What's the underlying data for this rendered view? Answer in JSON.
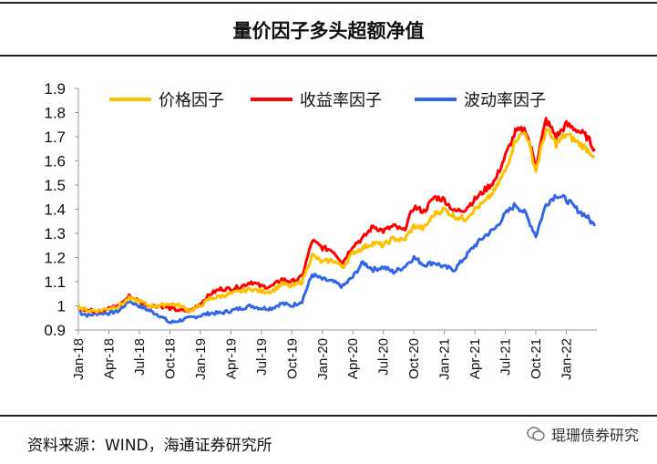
{
  "page": {
    "title": "量价因子多头超额净值",
    "source": "资料来源：WIND，海通证券研究所",
    "watermark": "琨珊债券研究"
  },
  "chart_data": {
    "type": "line",
    "title": "量价因子多头超额净值",
    "xlabel": "",
    "ylabel": "",
    "ylim": [
      0.9,
      1.9
    ],
    "yticks": [
      "0.9",
      "1",
      "1.1",
      "1.2",
      "1.3",
      "1.4",
      "1.5",
      "1.6",
      "1.7",
      "1.8",
      "1.9"
    ],
    "xticks": [
      "Jan-18",
      "Apr-18",
      "Jul-18",
      "Oct-18",
      "Jan-19",
      "Apr-19",
      "Jul-19",
      "Oct-19",
      "Jan-20",
      "Apr-20",
      "Jul-20",
      "Oct-20",
      "Jan-21",
      "Apr-21",
      "Jul-21",
      "Oct-21",
      "Jan-22"
    ],
    "grid": false,
    "legend": "top",
    "series": [
      {
        "name": "价格因子",
        "color": "#FFC000",
        "x": [
          0,
          0.3,
          1,
          2,
          3,
          4,
          5,
          6,
          7,
          8,
          9,
          10,
          11,
          12,
          13,
          14,
          15,
          16,
          17,
          18,
          19,
          20,
          21,
          22,
          23,
          24,
          25,
          26,
          27,
          28,
          29,
          30,
          31,
          32,
          33,
          34,
          35,
          36,
          37,
          38,
          39,
          40,
          41,
          42,
          43,
          44,
          45,
          46,
          47,
          48,
          49,
          50,
          50.8
        ],
        "values": [
          1.0,
          0.99,
          0.98,
          0.98,
          0.99,
          1.0,
          1.03,
          1.02,
          1.0,
          1.0,
          1.01,
          1.0,
          0.98,
          1.0,
          1.03,
          1.04,
          1.05,
          1.06,
          1.07,
          1.06,
          1.06,
          1.09,
          1.08,
          1.1,
          1.21,
          1.18,
          1.19,
          1.16,
          1.22,
          1.24,
          1.26,
          1.25,
          1.28,
          1.27,
          1.33,
          1.32,
          1.38,
          1.4,
          1.37,
          1.36,
          1.4,
          1.43,
          1.48,
          1.56,
          1.69,
          1.72,
          1.56,
          1.73,
          1.67,
          1.71,
          1.68,
          1.65,
          1.62
        ]
      },
      {
        "name": "收益率因子",
        "color": "#FF0000",
        "x": [
          0,
          0.3,
          1,
          2,
          3,
          4,
          5,
          6,
          7,
          8,
          9,
          10,
          11,
          12,
          13,
          14,
          15,
          16,
          17,
          18,
          19,
          20,
          21,
          22,
          23,
          24,
          25,
          26,
          27,
          28,
          29,
          30,
          31,
          32,
          33,
          34,
          35,
          36,
          37,
          38,
          39,
          40,
          41,
          42,
          43,
          44,
          45,
          46,
          47,
          48,
          49,
          50,
          50.8
        ],
        "values": [
          1.0,
          0.99,
          0.98,
          0.98,
          0.99,
          1.0,
          1.04,
          1.02,
          1.0,
          1.0,
          0.99,
          0.98,
          0.98,
          1.01,
          1.05,
          1.07,
          1.07,
          1.08,
          1.1,
          1.08,
          1.08,
          1.11,
          1.1,
          1.12,
          1.27,
          1.24,
          1.23,
          1.18,
          1.25,
          1.28,
          1.33,
          1.31,
          1.33,
          1.31,
          1.41,
          1.39,
          1.45,
          1.44,
          1.39,
          1.4,
          1.44,
          1.48,
          1.52,
          1.62,
          1.72,
          1.73,
          1.58,
          1.77,
          1.7,
          1.75,
          1.73,
          1.7,
          1.65
        ]
      },
      {
        "name": "波动率因子",
        "color": "#3366E6",
        "x": [
          0,
          0.3,
          1,
          2,
          3,
          4,
          5,
          6,
          7,
          8,
          9,
          10,
          11,
          12,
          13,
          14,
          15,
          16,
          17,
          18,
          19,
          20,
          21,
          22,
          23,
          24,
          25,
          26,
          27,
          28,
          29,
          30,
          31,
          32,
          33,
          34,
          35,
          36,
          37,
          38,
          39,
          40,
          41,
          42,
          43,
          44,
          45,
          46,
          47,
          48,
          49,
          50,
          50.8
        ],
        "values": [
          1.0,
          0.97,
          0.96,
          0.97,
          0.97,
          0.98,
          1.02,
          1.0,
          0.98,
          0.96,
          0.93,
          0.94,
          0.95,
          0.96,
          0.97,
          0.97,
          0.98,
          0.99,
          1.0,
          0.99,
          0.99,
          1.01,
          1.0,
          1.02,
          1.13,
          1.11,
          1.1,
          1.08,
          1.12,
          1.18,
          1.15,
          1.16,
          1.14,
          1.16,
          1.2,
          1.17,
          1.18,
          1.16,
          1.15,
          1.2,
          1.25,
          1.29,
          1.32,
          1.38,
          1.42,
          1.38,
          1.29,
          1.42,
          1.46,
          1.44,
          1.4,
          1.37,
          1.33
        ]
      }
    ]
  }
}
